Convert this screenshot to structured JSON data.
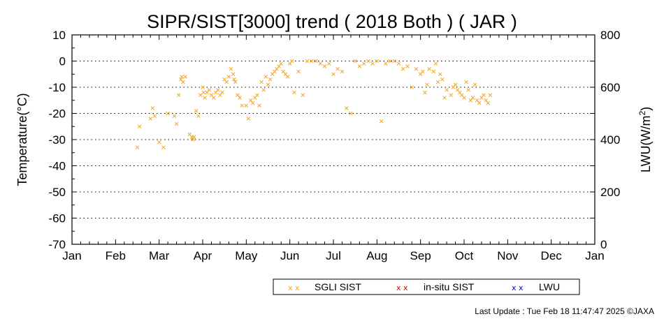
{
  "chart_data": {
    "type": "scatter",
    "title": "SIPR/SIST[3000] trend ( 2018 Both ) ( JAR )",
    "ylabel": "Temperature(°C)",
    "y2label": {
      "base": "LWU(W/m",
      "exp": "2",
      "close": ")"
    },
    "x_ticks": [
      "Jan",
      "Feb",
      "Mar",
      "Apr",
      "May",
      "Jun",
      "Jul",
      "Aug",
      "Sep",
      "Oct",
      "Nov",
      "Dec",
      "Jan"
    ],
    "xlim": [
      0,
      12
    ],
    "ylim": [
      -70,
      10
    ],
    "y_ticks": [
      "10",
      "0",
      "-10",
      "-20",
      "-30",
      "-40",
      "-50",
      "-60",
      "-70"
    ],
    "y2lim": [
      0,
      800
    ],
    "y2_ticks": [
      "800",
      "600",
      "400",
      "200",
      "0"
    ],
    "grid": "dotted horizontal at 0, -10, -20, -30, -40, -50, -60",
    "legend": {
      "placement": "bottom-center",
      "entries": [
        {
          "label": "SGLI SIST",
          "marker": "x x",
          "color": "#f5a623"
        },
        {
          "label": "in-situ SIST",
          "marker": "x x",
          "color": "#e00000"
        },
        {
          "label": "LWU",
          "marker": "x x",
          "color": "#0000e0"
        }
      ]
    },
    "footer": "Last Update : Tue Feb 18 11:47:47 2025  ©JAXA",
    "series": [
      {
        "name": "SGLI SIST",
        "color": "#f5a623",
        "x": [
          1.5,
          1.55,
          1.8,
          1.85,
          1.9,
          2.0,
          2.1,
          2.2,
          2.35,
          2.4,
          2.45,
          2.5,
          2.52,
          2.55,
          2.6,
          2.7,
          2.75,
          2.78,
          2.8,
          2.85,
          2.9,
          2.95,
          3.0,
          3.02,
          3.05,
          3.1,
          3.15,
          3.2,
          3.25,
          3.3,
          3.35,
          3.4,
          3.45,
          3.5,
          3.55,
          3.6,
          3.65,
          3.7,
          3.72,
          3.75,
          3.8,
          3.85,
          3.9,
          4.0,
          4.05,
          4.1,
          4.15,
          4.2,
          4.25,
          4.3,
          4.35,
          4.4,
          4.45,
          4.5,
          4.55,
          4.6,
          4.65,
          4.7,
          4.75,
          4.8,
          4.85,
          4.9,
          4.95,
          5.0,
          5.05,
          5.1,
          5.2,
          5.3,
          5.4,
          5.5,
          5.6,
          5.7,
          5.8,
          5.9,
          6.0,
          6.1,
          6.2,
          6.3,
          6.4,
          6.5,
          6.6,
          6.7,
          6.8,
          6.9,
          7.0,
          7.1,
          7.2,
          7.3,
          7.4,
          7.5,
          7.6,
          7.7,
          7.8,
          7.9,
          8.0,
          8.05,
          8.1,
          8.15,
          8.2,
          8.3,
          8.35,
          8.4,
          8.45,
          8.5,
          8.55,
          8.6,
          8.7,
          8.75,
          8.8,
          8.85,
          8.9,
          8.95,
          9.0,
          9.05,
          9.1,
          9.15,
          9.2,
          9.25,
          9.3,
          9.35,
          9.4,
          9.45,
          9.5,
          9.55,
          9.6
        ],
        "y": [
          -33,
          -25,
          -22,
          -18,
          -21,
          -31,
          -33,
          -20,
          -21,
          -24,
          -13,
          -7,
          -6,
          -8,
          -6,
          -28,
          -29,
          -30,
          -29,
          -19,
          -21,
          -13,
          -10,
          -12,
          -14,
          -12,
          -11,
          -13,
          -14,
          -12,
          -11,
          -13,
          -12,
          -7,
          -8,
          -6,
          -3,
          -5,
          -7,
          -8,
          -13,
          -14,
          -17,
          -17,
          -22,
          -15,
          -16,
          -14,
          -13,
          -17,
          -8,
          -11,
          -6,
          -9,
          -7,
          -5,
          -4,
          -3,
          -2,
          -1,
          -4,
          -5,
          -6,
          -1,
          0,
          -12,
          -4,
          -13,
          0,
          0,
          0,
          -1,
          -2,
          -1,
          -5,
          -3,
          -4,
          -18,
          -20,
          0,
          -2,
          -1,
          0,
          -1,
          0,
          -23,
          -1,
          0,
          0,
          -1,
          -3,
          -2,
          -10,
          -3,
          -5,
          -4,
          -12,
          -9,
          -3,
          -4,
          -1,
          -8,
          -5,
          -7,
          -14,
          -11,
          -13,
          -10,
          -9,
          -11,
          -12,
          -13,
          -14,
          -8,
          -11,
          -15,
          -14,
          -9,
          -15,
          -16,
          -14,
          -13,
          -15,
          -16,
          -13
        ]
      }
    ]
  }
}
